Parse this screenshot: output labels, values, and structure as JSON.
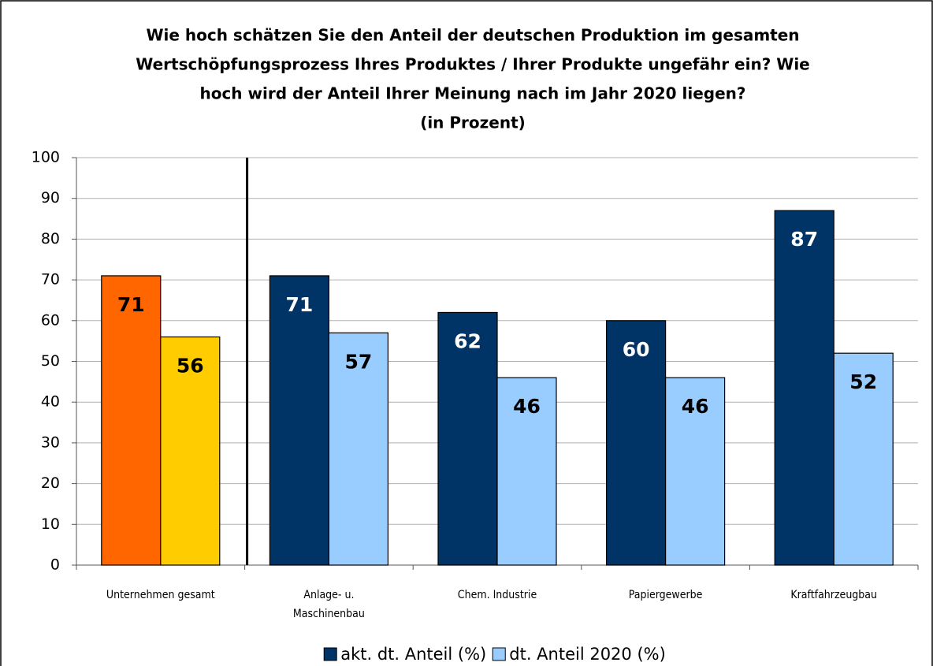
{
  "chart_data": {
    "type": "bar",
    "title": [
      "Wie hoch schätzen Sie den Anteil der deutschen Produktion im gesamten",
      "Wertschöpfungsprozess Ihres Produktes / Ihrer Produkte ungefähr ein? Wie",
      "hoch wird der Anteil Ihrer Meinung nach im Jahr 2020 liegen?"
    ],
    "subtitle": "(in Prozent)",
    "categories": [
      "Unternehmen gesamt",
      "Anlage- u. Maschinenbau",
      "Chem. Industrie",
      "Papiergewerbe",
      "Kraftfahrzeugbau"
    ],
    "series": [
      {
        "name": "akt. dt. Anteil (%)",
        "color": "#003366",
        "point_colors": [
          "#ff6600",
          "#003366",
          "#003366",
          "#003366",
          "#003366"
        ],
        "label_colors": [
          "#000000",
          "#ffffff",
          "#ffffff",
          "#ffffff",
          "#ffffff"
        ],
        "values": [
          71,
          71,
          62,
          60,
          87
        ]
      },
      {
        "name": "dt. Anteil 2020 (%)",
        "color": "#99ccff",
        "point_colors": [
          "#ffcc00",
          "#99ccff",
          "#99ccff",
          "#99ccff",
          "#99ccff"
        ],
        "label_colors": [
          "#000000",
          "#000000",
          "#000000",
          "#000000",
          "#000000"
        ],
        "values": [
          56,
          57,
          46,
          46,
          52
        ]
      }
    ],
    "ylim": [
      0,
      100
    ],
    "yticks": [
      0,
      10,
      20,
      30,
      40,
      50,
      60,
      70,
      80,
      90,
      100
    ],
    "grid": true,
    "legend": "bottom"
  }
}
